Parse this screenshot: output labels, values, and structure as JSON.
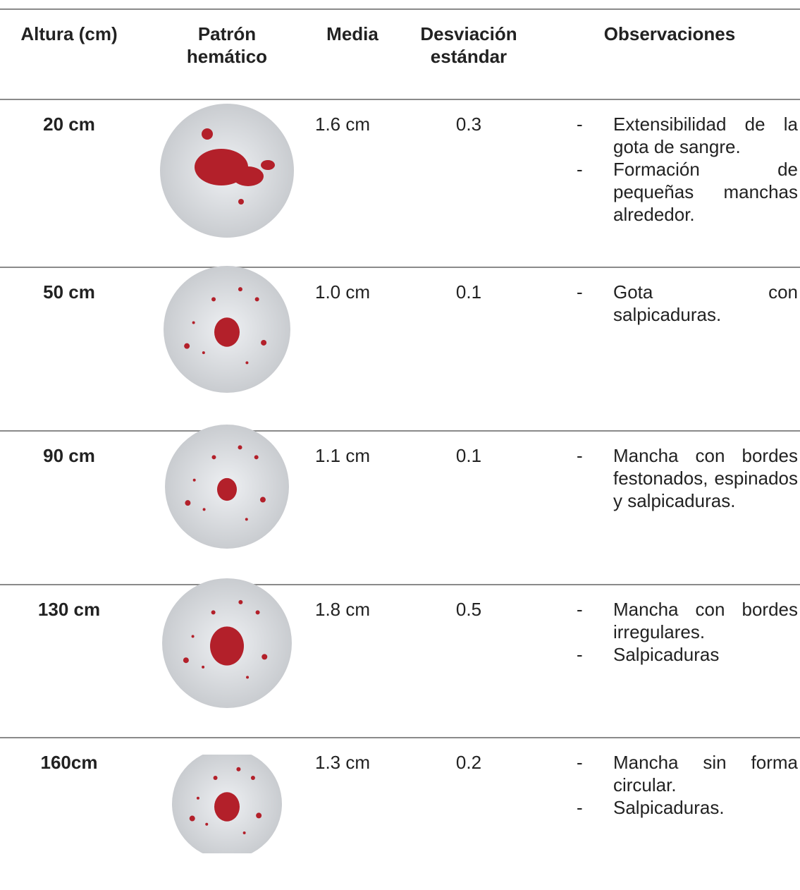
{
  "table": {
    "header": [
      "Altura (cm)",
      "Patrón hemático",
      "Media",
      "Desviación estándar",
      "Observaciones"
    ],
    "rows": [
      {
        "altura": "20 cm",
        "media": "1.6 cm",
        "desviacion": "0.3",
        "observaciones": [
          "Extensibilidad de la gota de sangre.",
          "Formación de pequeñas manchas alrededor."
        ]
      },
      {
        "altura": "50 cm",
        "media": "1.0 cm",
        "desviacion": "0.1",
        "observaciones": [
          "Gota con salpicaduras."
        ]
      },
      {
        "altura": "90 cm",
        "media": "1.1 cm",
        "desviacion": "0.1",
        "observaciones": [
          "Mancha con bordes festonados, espinados y salpicaduras."
        ]
      },
      {
        "altura": "130 cm",
        "media": "1.8 cm",
        "desviacion": "0.5",
        "observaciones": [
          "Mancha con bordes irregulares.",
          "Salpicaduras"
        ]
      },
      {
        "altura": "160cm",
        "media": "1.3 cm",
        "desviacion": "0.2",
        "observaciones": [
          "Mancha sin forma circular.",
          "Salpicaduras."
        ]
      }
    ]
  }
}
